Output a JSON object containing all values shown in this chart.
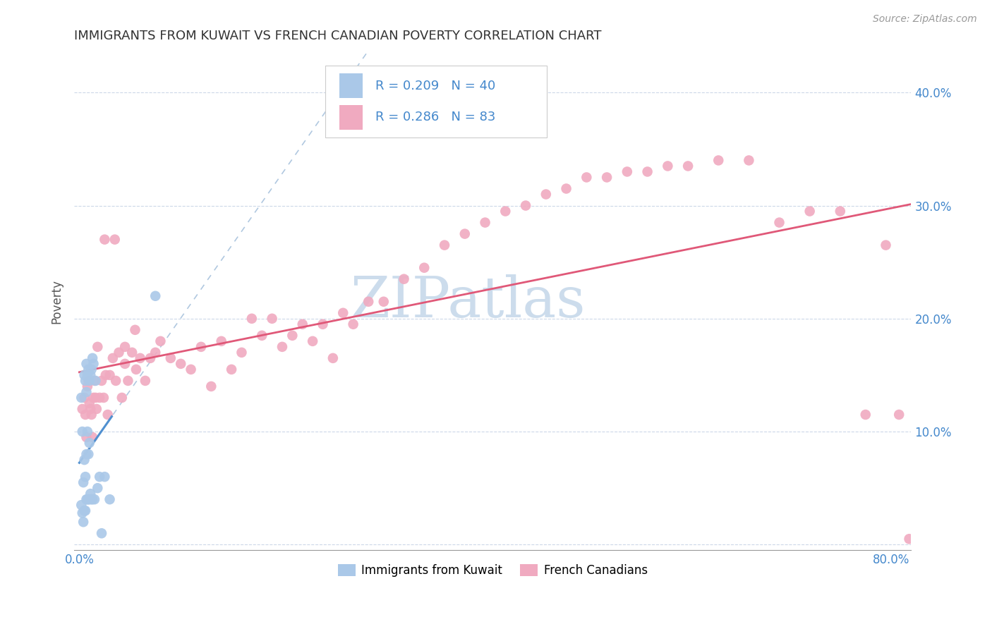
{
  "title": "IMMIGRANTS FROM KUWAIT VS FRENCH CANADIAN POVERTY CORRELATION CHART",
  "source": "Source: ZipAtlas.com",
  "ylabel": "Poverty",
  "xlim": [
    -0.005,
    0.82
  ],
  "ylim": [
    -0.005,
    0.435
  ],
  "kuwait_R": 0.209,
  "kuwait_N": 40,
  "french_R": 0.286,
  "french_N": 83,
  "kuwait_color": "#aac8e8",
  "french_color": "#f0aac0",
  "kuwait_line_color": "#5090d0",
  "french_line_color": "#e05878",
  "dashed_line_color": "#b0c8e0",
  "watermark": "ZIPatlas",
  "watermark_color": "#ccdcec",
  "kuwait_x": [
    0.002,
    0.002,
    0.003,
    0.003,
    0.004,
    0.004,
    0.005,
    0.005,
    0.005,
    0.006,
    0.006,
    0.006,
    0.007,
    0.007,
    0.007,
    0.007,
    0.008,
    0.008,
    0.008,
    0.009,
    0.009,
    0.009,
    0.01,
    0.01,
    0.01,
    0.011,
    0.011,
    0.012,
    0.012,
    0.013,
    0.013,
    0.014,
    0.015,
    0.016,
    0.018,
    0.02,
    0.022,
    0.025,
    0.03,
    0.075
  ],
  "kuwait_y": [
    0.035,
    0.13,
    0.028,
    0.1,
    0.02,
    0.055,
    0.03,
    0.075,
    0.15,
    0.03,
    0.06,
    0.145,
    0.04,
    0.08,
    0.135,
    0.16,
    0.04,
    0.1,
    0.15,
    0.04,
    0.08,
    0.155,
    0.04,
    0.09,
    0.145,
    0.045,
    0.15,
    0.04,
    0.155,
    0.04,
    0.165,
    0.16,
    0.04,
    0.145,
    0.05,
    0.06,
    0.01,
    0.06,
    0.04,
    0.22
  ],
  "french_x": [
    0.003,
    0.005,
    0.006,
    0.007,
    0.008,
    0.009,
    0.01,
    0.011,
    0.012,
    0.013,
    0.014,
    0.015,
    0.016,
    0.017,
    0.018,
    0.02,
    0.022,
    0.024,
    0.026,
    0.028,
    0.03,
    0.033,
    0.036,
    0.039,
    0.042,
    0.045,
    0.048,
    0.052,
    0.056,
    0.06,
    0.065,
    0.07,
    0.075,
    0.08,
    0.09,
    0.1,
    0.11,
    0.12,
    0.13,
    0.14,
    0.15,
    0.16,
    0.17,
    0.18,
    0.19,
    0.2,
    0.21,
    0.22,
    0.23,
    0.24,
    0.25,
    0.26,
    0.27,
    0.285,
    0.3,
    0.32,
    0.34,
    0.36,
    0.38,
    0.4,
    0.42,
    0.44,
    0.46,
    0.48,
    0.5,
    0.52,
    0.54,
    0.56,
    0.58,
    0.6,
    0.63,
    0.66,
    0.69,
    0.72,
    0.75,
    0.775,
    0.795,
    0.808,
    0.818,
    0.025,
    0.035,
    0.045,
    0.055
  ],
  "french_y": [
    0.12,
    0.13,
    0.115,
    0.095,
    0.14,
    0.145,
    0.125,
    0.12,
    0.115,
    0.095,
    0.13,
    0.145,
    0.13,
    0.12,
    0.175,
    0.13,
    0.145,
    0.13,
    0.15,
    0.115,
    0.15,
    0.165,
    0.145,
    0.17,
    0.13,
    0.16,
    0.145,
    0.17,
    0.155,
    0.165,
    0.145,
    0.165,
    0.17,
    0.18,
    0.165,
    0.16,
    0.155,
    0.175,
    0.14,
    0.18,
    0.155,
    0.17,
    0.2,
    0.185,
    0.2,
    0.175,
    0.185,
    0.195,
    0.18,
    0.195,
    0.165,
    0.205,
    0.195,
    0.215,
    0.215,
    0.235,
    0.245,
    0.265,
    0.275,
    0.285,
    0.295,
    0.3,
    0.31,
    0.315,
    0.325,
    0.325,
    0.33,
    0.33,
    0.335,
    0.335,
    0.34,
    0.34,
    0.285,
    0.295,
    0.295,
    0.115,
    0.265,
    0.115,
    0.005,
    0.27,
    0.27,
    0.175,
    0.19
  ]
}
